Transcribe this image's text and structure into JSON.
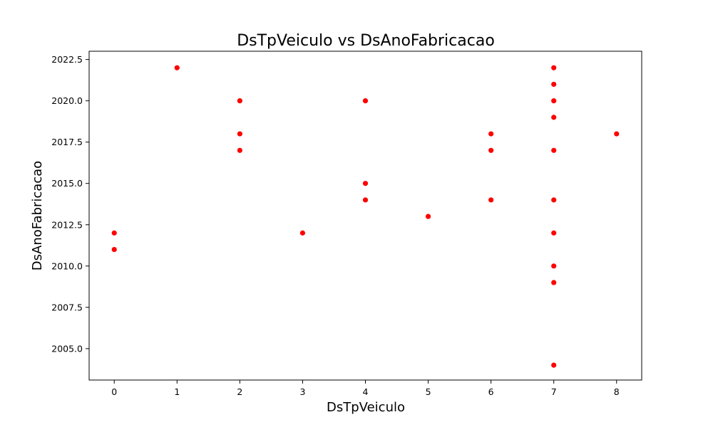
{
  "chart_data": {
    "type": "scatter",
    "title": "DsTpVeiculo vs DsAnoFabricacao",
    "xlabel": "DsTpVeiculo",
    "ylabel": "DsAnoFabricacao",
    "xlim": [
      -0.4,
      8.4
    ],
    "ylim": [
      2003.1,
      2023.0
    ],
    "xticks": [
      0,
      1,
      2,
      3,
      4,
      5,
      6,
      7,
      8
    ],
    "xtick_labels": [
      "0",
      "1",
      "2",
      "3",
      "4",
      "5",
      "6",
      "7",
      "8"
    ],
    "yticks": [
      2005.0,
      2007.5,
      2010.0,
      2012.5,
      2015.0,
      2017.5,
      2020.0,
      2022.5
    ],
    "ytick_labels": [
      "2005.0",
      "2007.5",
      "2010.0",
      "2012.5",
      "2015.0",
      "2017.5",
      "2020.0",
      "2022.5"
    ],
    "grid": false,
    "marker_color": "#ff0000",
    "points": [
      {
        "x": 0,
        "y": 2012
      },
      {
        "x": 0,
        "y": 2011
      },
      {
        "x": 1,
        "y": 2022
      },
      {
        "x": 2,
        "y": 2020
      },
      {
        "x": 2,
        "y": 2018
      },
      {
        "x": 2,
        "y": 2017
      },
      {
        "x": 3,
        "y": 2012
      },
      {
        "x": 4,
        "y": 2020
      },
      {
        "x": 4,
        "y": 2015
      },
      {
        "x": 4,
        "y": 2014
      },
      {
        "x": 5,
        "y": 2013
      },
      {
        "x": 6,
        "y": 2018
      },
      {
        "x": 6,
        "y": 2017
      },
      {
        "x": 6,
        "y": 2014
      },
      {
        "x": 7,
        "y": 2022
      },
      {
        "x": 7,
        "y": 2021
      },
      {
        "x": 7,
        "y": 2020
      },
      {
        "x": 7,
        "y": 2019
      },
      {
        "x": 7,
        "y": 2017
      },
      {
        "x": 7,
        "y": 2014
      },
      {
        "x": 7,
        "y": 2012
      },
      {
        "x": 7,
        "y": 2010
      },
      {
        "x": 7,
        "y": 2009
      },
      {
        "x": 7,
        "y": 2004
      },
      {
        "x": 8,
        "y": 2018
      }
    ]
  }
}
